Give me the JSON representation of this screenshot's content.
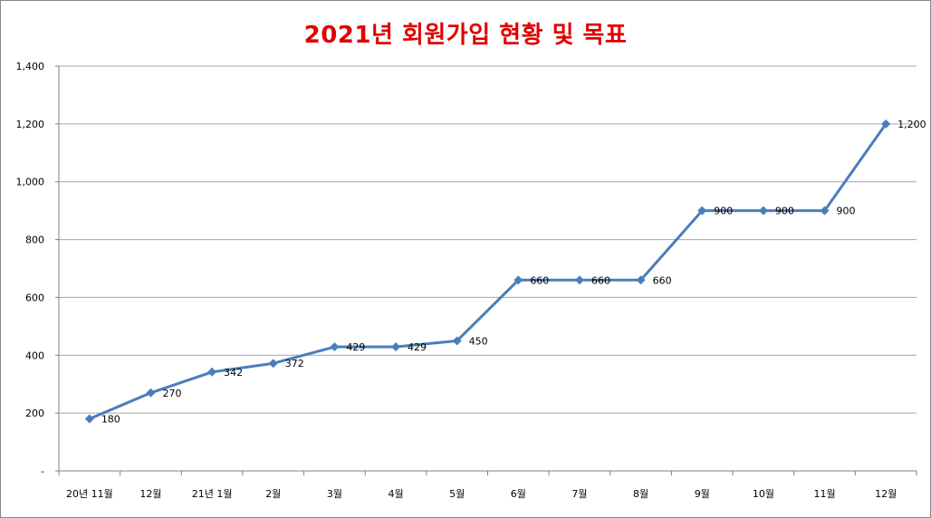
{
  "chart_data": {
    "type": "line",
    "title": "2021년 회원가입 현황 및 목표",
    "categories": [
      "20년 11월",
      "12월",
      "21년 1월",
      "2월",
      "3월",
      "4월",
      "5월",
      "6월",
      "7월",
      "8월",
      "9월",
      "10월",
      "11월",
      "12월"
    ],
    "series": [
      {
        "values": [
          180,
          270,
          342,
          372,
          429,
          429,
          450,
          660,
          660,
          660,
          900,
          900,
          900,
          1200
        ]
      }
    ],
    "data_labels": [
      "180",
      "270",
      "342",
      "372",
      "429",
      "429",
      "450",
      "660",
      "660",
      "660",
      "900",
      "900",
      "900",
      "1,200"
    ],
    "y_ticks": [
      {
        "value": 0,
        "label": "-"
      },
      {
        "value": 200,
        "label": "200"
      },
      {
        "value": 400,
        "label": "400"
      },
      {
        "value": 600,
        "label": "600"
      },
      {
        "value": 800,
        "label": "800"
      },
      {
        "value": 1000,
        "label": "1,000"
      },
      {
        "value": 1200,
        "label": "1,200"
      },
      {
        "value": 1400,
        "label": "1,400"
      }
    ],
    "ylim": [
      0,
      1400
    ],
    "xlabel": "",
    "ylabel": "",
    "grid": true,
    "legend": "none",
    "colors": {
      "line": "#4a7ebb",
      "marker": "#4a7ebb",
      "grid": "#a6a6a6",
      "title": "#e00000"
    }
  }
}
